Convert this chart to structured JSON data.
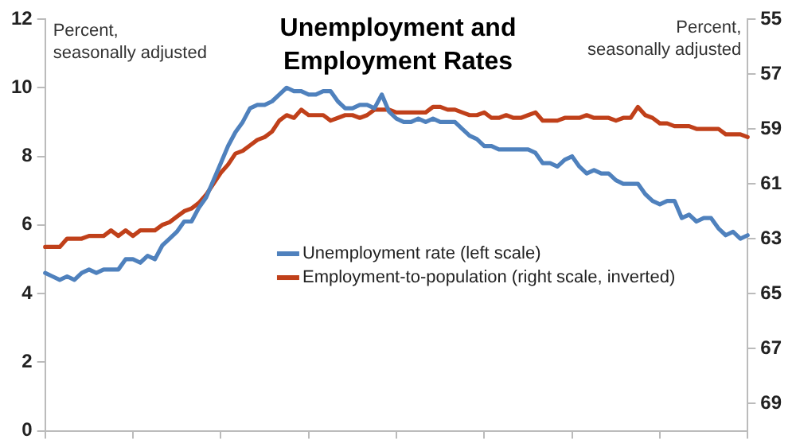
{
  "chart_data": {
    "type": "line",
    "title": "Unemployment and\nEmployment Rates",
    "ylabel": "Percent,\nseasonally adjusted",
    "y2label": "Percent,\nseasonally adjusted",
    "categories": [
      null,
      null,
      null,
      null,
      null,
      null,
      null,
      null,
      null,
      null,
      null,
      null,
      null,
      null,
      null,
      null,
      null,
      null,
      null,
      null,
      null,
      null,
      null,
      null,
      null,
      null,
      null,
      null,
      null,
      null,
      null,
      null,
      null,
      null,
      null,
      null,
      null,
      null,
      null,
      null,
      null,
      null,
      null,
      null,
      null,
      null,
      null,
      null,
      null,
      null,
      null,
      null,
      null,
      null,
      null,
      null,
      null,
      null,
      null,
      null,
      null,
      null,
      null,
      null,
      null,
      null,
      null,
      null,
      null,
      null,
      null,
      null,
      null,
      null,
      null,
      null,
      null,
      null,
      null,
      null,
      null,
      null,
      null,
      null,
      null,
      null,
      null,
      null,
      null,
      null,
      null,
      null,
      null,
      null,
      null,
      null,
      null
    ],
    "series": [
      {
        "name": "Unemployment rate (left scale)",
        "color": "#4f81bd",
        "values": [
          4.6,
          4.5,
          4.4,
          4.5,
          4.4,
          4.6,
          4.7,
          4.6,
          4.7,
          4.7,
          4.7,
          5.0,
          5.0,
          4.9,
          5.1,
          5.0,
          5.4,
          5.6,
          5.8,
          6.1,
          6.1,
          6.5,
          6.8,
          7.3,
          7.8,
          8.3,
          8.7,
          9.0,
          9.4,
          9.5,
          9.5,
          9.6,
          9.8,
          10.0,
          9.9,
          9.9,
          9.8,
          9.8,
          9.9,
          9.9,
          9.6,
          9.4,
          9.4,
          9.5,
          9.5,
          9.4,
          9.8,
          9.3,
          9.1,
          9.0,
          9.0,
          9.1,
          9.0,
          9.1,
          9.0,
          9.0,
          9.0,
          8.8,
          8.6,
          8.5,
          8.3,
          8.3,
          8.2,
          8.2,
          8.2,
          8.2,
          8.2,
          8.1,
          7.8,
          7.8,
          7.7,
          7.9,
          8.0,
          7.7,
          7.5,
          7.6,
          7.5,
          7.5,
          7.3,
          7.2,
          7.2,
          7.2,
          6.9,
          6.7,
          6.6,
          6.7,
          6.7,
          6.2,
          6.3,
          6.1,
          6.2,
          6.2,
          5.9,
          5.7,
          5.8,
          5.6,
          5.7
        ]
      },
      {
        "name": "Employment-to-population (right scale, inverted)",
        "color": "#c0401a",
        "axis": "y2",
        "values": [
          63.3,
          63.3,
          63.3,
          63.0,
          63.0,
          63.0,
          62.9,
          62.9,
          62.9,
          62.7,
          62.9,
          62.7,
          62.9,
          62.7,
          62.7,
          62.7,
          62.5,
          62.4,
          62.2,
          62.0,
          61.9,
          61.7,
          61.4,
          61.0,
          60.6,
          60.3,
          59.9,
          59.8,
          59.6,
          59.4,
          59.3,
          59.1,
          58.7,
          58.5,
          58.6,
          58.3,
          58.5,
          58.5,
          58.5,
          58.7,
          58.6,
          58.5,
          58.5,
          58.6,
          58.5,
          58.3,
          58.3,
          58.3,
          58.4,
          58.4,
          58.4,
          58.4,
          58.4,
          58.2,
          58.2,
          58.3,
          58.3,
          58.4,
          58.5,
          58.5,
          58.4,
          58.6,
          58.6,
          58.5,
          58.6,
          58.6,
          58.5,
          58.4,
          58.7,
          58.7,
          58.7,
          58.6,
          58.6,
          58.6,
          58.5,
          58.6,
          58.6,
          58.6,
          58.7,
          58.6,
          58.6,
          58.2,
          58.5,
          58.6,
          58.8,
          58.8,
          58.9,
          58.9,
          58.9,
          59.0,
          59.0,
          59.0,
          59.0,
          59.2,
          59.2,
          59.2,
          59.3
        ]
      }
    ],
    "ylim": [
      0,
      12
    ],
    "yticks": [
      0,
      2,
      4,
      6,
      8,
      10,
      12
    ],
    "y2lim": [
      70,
      55
    ],
    "y2ticks": [
      55,
      57,
      59,
      61,
      63,
      65,
      67,
      69
    ],
    "tick_labels": "y",
    "grid": false,
    "legend": "center",
    "marker": "none",
    "line_style": "solid"
  }
}
